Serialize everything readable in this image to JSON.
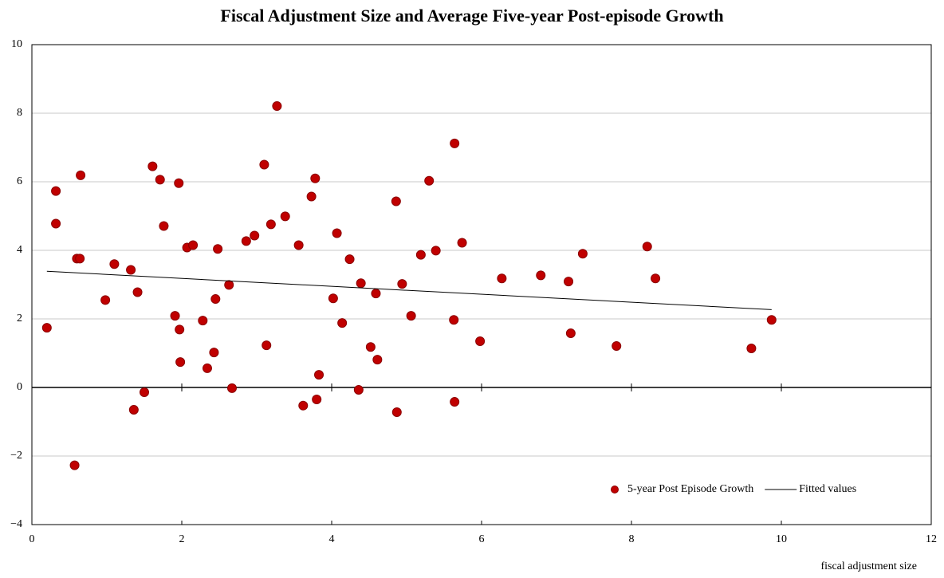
{
  "chart_data": {
    "type": "scatter",
    "title": "Fiscal Adjustment Size and Average Five-year Post-episode Growth",
    "x_label": "fiscal adjustment size",
    "xlim": [
      0,
      12
    ],
    "xticks": [
      0,
      2,
      4,
      6,
      8,
      10,
      12
    ],
    "ylim": [
      -4,
      10
    ],
    "yticks": [
      {
        "value": -4,
        "label": "−4"
      },
      {
        "value": -2,
        "label": "−2"
      },
      0,
      2,
      4,
      6,
      8,
      10
    ],
    "grid": true,
    "zero_line": true,
    "legend": "lower right",
    "series": [
      {
        "name": "5-year Post Episode Growth",
        "type": "scatter",
        "color": "#c00000",
        "x": [
          0.2,
          0.32,
          0.32,
          0.57,
          0.6,
          0.64,
          0.65,
          0.98,
          1.1,
          1.32,
          1.36,
          1.41,
          1.5,
          1.61,
          1.71,
          1.76,
          1.91,
          1.96,
          1.97,
          1.98,
          2.07,
          2.15,
          2.28,
          2.34,
          2.43,
          2.45,
          2.48,
          2.63,
          2.67,
          2.86,
          2.97,
          3.1,
          3.13,
          3.19,
          3.27,
          3.38,
          3.56,
          3.62,
          3.73,
          3.78,
          3.8,
          3.83,
          4.02,
          4.07,
          4.14,
          4.24,
          4.36,
          4.39,
          4.52,
          4.59,
          4.61,
          4.86,
          4.87,
          4.94,
          5.06,
          5.19,
          5.3,
          5.39,
          5.63,
          5.64,
          5.64,
          5.74,
          5.98,
          6.27,
          6.79,
          7.16,
          7.19,
          7.35,
          7.8,
          8.21,
          8.32,
          9.6,
          9.87
        ],
        "values": [
          1.74,
          5.73,
          4.78,
          -2.27,
          3.76,
          3.76,
          6.19,
          2.55,
          3.6,
          3.43,
          -0.65,
          2.78,
          -0.14,
          6.45,
          6.06,
          4.71,
          2.09,
          5.96,
          1.69,
          0.74,
          4.08,
          4.15,
          1.95,
          0.56,
          1.02,
          2.58,
          4.04,
          2.99,
          -0.02,
          4.27,
          4.43,
          6.5,
          1.23,
          4.76,
          8.21,
          4.99,
          4.15,
          -0.53,
          5.57,
          6.1,
          -0.35,
          0.37,
          2.6,
          4.5,
          1.88,
          3.74,
          -0.07,
          3.04,
          1.18,
          2.74,
          0.81,
          5.43,
          -0.72,
          3.02,
          2.09,
          3.87,
          6.03,
          3.99,
          1.97,
          7.12,
          -0.42,
          4.22,
          1.35,
          3.18,
          3.27,
          3.09,
          1.58,
          3.9,
          1.21,
          4.11,
          3.18,
          1.14,
          1.97
        ]
      },
      {
        "name": "Fitted values",
        "type": "line",
        "color": "#000000",
        "x": [
          0.2,
          9.87
        ],
        "values": [
          3.39,
          2.27
        ]
      }
    ]
  }
}
